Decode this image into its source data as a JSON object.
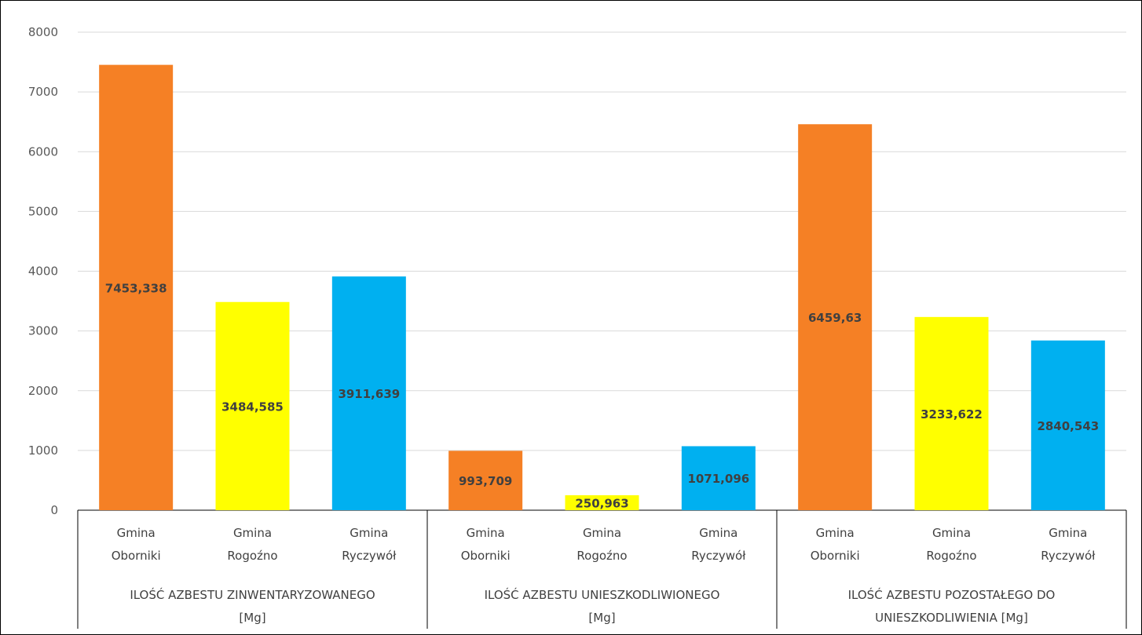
{
  "chart_data": {
    "type": "bar",
    "title": "",
    "xlabel": "",
    "ylabel": "",
    "ylim": [
      0,
      8000
    ],
    "yticks": [
      0,
      1000,
      2000,
      3000,
      4000,
      5000,
      6000,
      7000,
      8000
    ],
    "grid": true,
    "legend": "none",
    "groups": [
      {
        "label": [
          "ILOŚĆ AZBESTU ZINWENTARYZOWANEGO",
          "[Mg]"
        ],
        "bars": [
          {
            "category": [
              "Gmina",
              "Oborniki"
            ],
            "value": 7453.338,
            "label": "7453,338",
            "color": "#F58025"
          },
          {
            "category": [
              "Gmina",
              "Rogoźno"
            ],
            "value": 3484.585,
            "label": "3484,585",
            "color": "#FFFF00"
          },
          {
            "category": [
              "Gmina",
              "Ryczywół"
            ],
            "value": 3911.639,
            "label": "3911,639",
            "color": "#00B0F0"
          }
        ]
      },
      {
        "label": [
          "ILOŚĆ AZBESTU UNIESZKODLIWIONEGO",
          "[Mg]"
        ],
        "bars": [
          {
            "category": [
              "Gmina",
              "Oborniki"
            ],
            "value": 993.709,
            "label": "993,709",
            "color": "#F58025"
          },
          {
            "category": [
              "Gmina",
              "Rogoźno"
            ],
            "value": 250.963,
            "label": "250,963",
            "color": "#FFFF00"
          },
          {
            "category": [
              "Gmina",
              "Ryczywół"
            ],
            "value": 1071.096,
            "label": "1071,096",
            "color": "#00B0F0"
          }
        ]
      },
      {
        "label": [
          "ILOŚĆ AZBESTU POZOSTAŁEGO DO",
          "UNIESZKODLIWIENIA [Mg]"
        ],
        "bars": [
          {
            "category": [
              "Gmina",
              "Oborniki"
            ],
            "value": 6459.63,
            "label": "6459,63",
            "color": "#F58025"
          },
          {
            "category": [
              "Gmina",
              "Rogoźno"
            ],
            "value": 3233.622,
            "label": "3233,622",
            "color": "#FFFF00"
          },
          {
            "category": [
              "Gmina",
              "Ryczywół"
            ],
            "value": 2840.543,
            "label": "2840,543",
            "color": "#00B0F0"
          }
        ]
      }
    ],
    "colors": {
      "gridline": "#D9D9D9",
      "axis": "#000000"
    }
  }
}
